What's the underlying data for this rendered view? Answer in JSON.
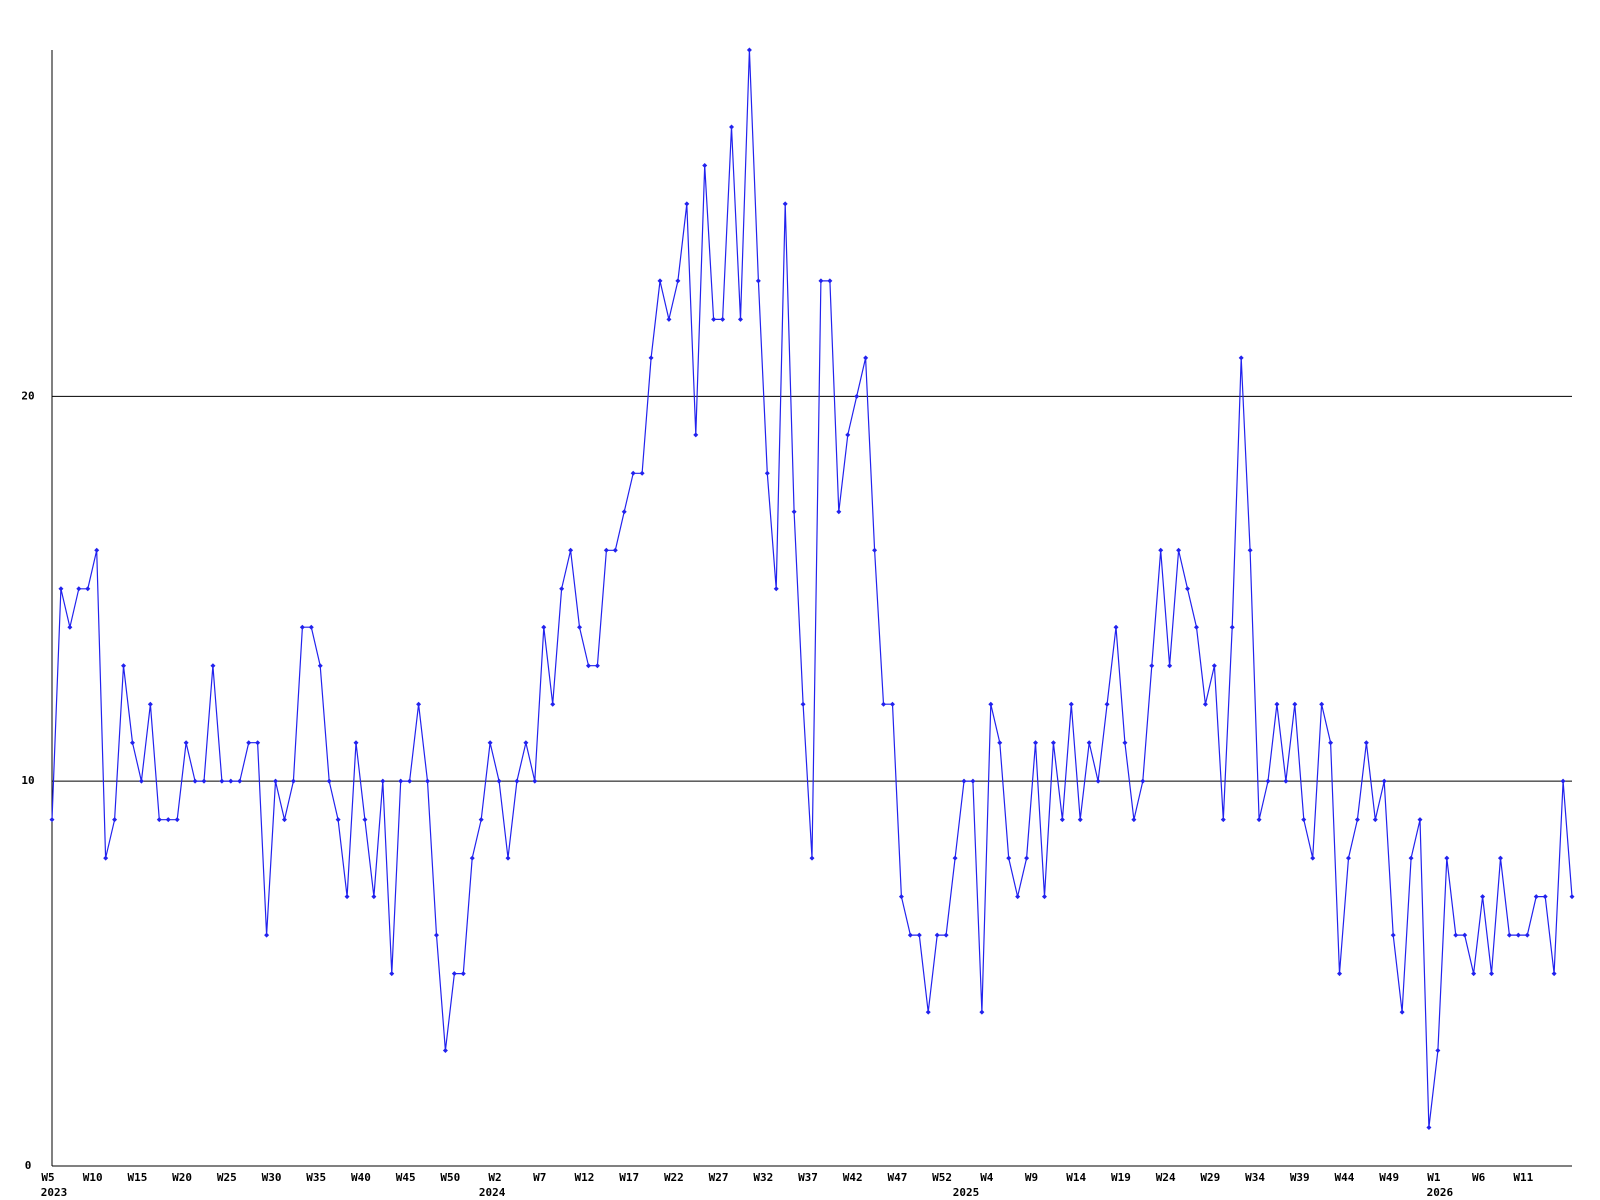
{
  "chart_data": {
    "type": "line",
    "categories": [
      "W5",
      null,
      null,
      null,
      null,
      "W10",
      null,
      null,
      null,
      null,
      "W15",
      null,
      null,
      null,
      null,
      "W20",
      null,
      null,
      null,
      null,
      "W25",
      null,
      null,
      null,
      null,
      "W30",
      null,
      null,
      null,
      null,
      "W35",
      null,
      null,
      null,
      null,
      "W40",
      null,
      null,
      null,
      null,
      "W45",
      null,
      null,
      null,
      null,
      "W50",
      null,
      null,
      null,
      null,
      "W2",
      null,
      null,
      null,
      null,
      "W7",
      null,
      null,
      null,
      null,
      "W12",
      null,
      null,
      null,
      null,
      "W17",
      null,
      null,
      null,
      null,
      "W22",
      null,
      null,
      null,
      null,
      "W27",
      null,
      null,
      null,
      null,
      "W32",
      null,
      null,
      null,
      null,
      "W37",
      null,
      null,
      null,
      null,
      "W42",
      null,
      null,
      null,
      null,
      "W47",
      null,
      null,
      null,
      null,
      "W52",
      null,
      null,
      null,
      null,
      "W4",
      null,
      null,
      null,
      null,
      "W9",
      null,
      null,
      null,
      null,
      "W14",
      null,
      null,
      null,
      null,
      "W19",
      null,
      null,
      null,
      null,
      "W24",
      null,
      null,
      null,
      null,
      "W29",
      null,
      null,
      null,
      null,
      "W34",
      null,
      null,
      null,
      null,
      "W39",
      null,
      null,
      null,
      null,
      "W44",
      null,
      null,
      null,
      null,
      "W49",
      null,
      null,
      null,
      null,
      "W1",
      null,
      null,
      null,
      null,
      "W6",
      null,
      null,
      null,
      null,
      "W11",
      null,
      null,
      null,
      null,
      null
    ],
    "category_years": [
      "2023",
      null,
      null,
      null,
      null,
      null,
      null,
      null,
      null,
      null,
      null,
      null,
      null,
      null,
      null,
      null,
      null,
      null,
      null,
      null,
      null,
      null,
      null,
      null,
      null,
      null,
      null,
      null,
      null,
      null,
      null,
      null,
      null,
      null,
      null,
      null,
      null,
      null,
      null,
      null,
      null,
      null,
      null,
      null,
      null,
      null,
      null,
      null,
      null,
      "2024",
      null,
      null,
      null,
      null,
      null,
      null,
      null,
      null,
      null,
      null,
      null,
      null,
      null,
      null,
      null,
      null,
      null,
      null,
      null,
      null,
      null,
      null,
      null,
      null,
      null,
      null,
      null,
      null,
      null,
      null,
      null,
      null,
      null,
      null,
      null,
      null,
      null,
      null,
      null,
      null,
      null,
      null,
      null,
      null,
      null,
      null,
      null,
      null,
      null,
      null,
      null,
      null,
      "2025",
      null,
      null,
      null,
      null,
      null,
      null,
      null,
      null,
      null,
      null,
      null,
      null,
      null,
      null,
      null,
      null,
      null,
      null,
      null,
      null,
      null,
      null,
      null,
      null,
      null,
      null,
      null,
      null,
      null,
      null,
      null,
      null,
      null,
      null,
      null,
      null,
      null,
      null,
      null,
      null,
      null,
      null,
      null,
      null,
      null,
      null,
      null,
      null,
      null,
      null,
      null,
      null,
      "2026",
      null,
      null,
      null,
      null,
      null,
      null,
      null,
      null,
      null,
      null,
      null,
      null,
      null,
      null,
      null
    ],
    "values": [
      9,
      15,
      14,
      15,
      15,
      16,
      8,
      9,
      13,
      11,
      10,
      12,
      9,
      9,
      9,
      11,
      10,
      10,
      13,
      10,
      10,
      10,
      11,
      11,
      6,
      10,
      9,
      10,
      14,
      14,
      13,
      10,
      9,
      7,
      11,
      9,
      7,
      10,
      5,
      10,
      10,
      12,
      10,
      6,
      3,
      5,
      5,
      8,
      9,
      11,
      10,
      8,
      10,
      11,
      10,
      14,
      12,
      15,
      16,
      14,
      13,
      13,
      16,
      16,
      17,
      18,
      18,
      21,
      23,
      22,
      23,
      25,
      19,
      26,
      22,
      22,
      27,
      22,
      29,
      23,
      18,
      15,
      25,
      17,
      12,
      8,
      23,
      23,
      17,
      19,
      20,
      21,
      16,
      12,
      12,
      7,
      6,
      6,
      4,
      6,
      6,
      8,
      10,
      10,
      4,
      12,
      11,
      8,
      7,
      8,
      11,
      7,
      11,
      9,
      12,
      9,
      11,
      10,
      12,
      14,
      11,
      9,
      10,
      13,
      16,
      13,
      16,
      15,
      14,
      12,
      13,
      9,
      14,
      21,
      16,
      9,
      10,
      12,
      10,
      12,
      9,
      8,
      12,
      11,
      5,
      8,
      9,
      11,
      9,
      10,
      6,
      4,
      8,
      9,
      1,
      3,
      8,
      6,
      6,
      5,
      7,
      5,
      8,
      6,
      6,
      6,
      7,
      7,
      5,
      10,
      7
    ],
    "color": "#2222ee",
    "ylim": [
      0,
      29
    ],
    "yticks": [
      0,
      10,
      20
    ],
    "grid": true
  }
}
